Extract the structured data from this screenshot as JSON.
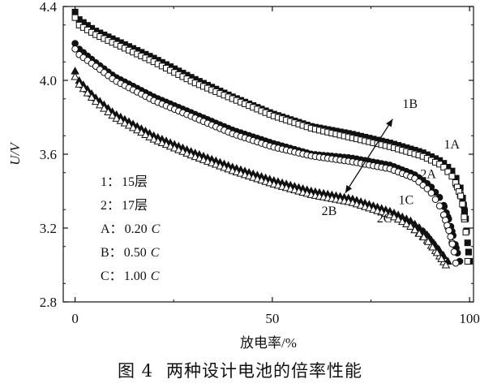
{
  "caption": {
    "figure_no": "图 4",
    "title": "两种设计电池的倍率性能"
  },
  "chart_data": {
    "type": "scatter",
    "xlabel": "放电率/%",
    "ylabel": "U/V",
    "xlim": [
      -3,
      101
    ],
    "ylim": [
      2.8,
      4.4
    ],
    "xticks": [
      0,
      50,
      100
    ],
    "yticks": [
      2.8,
      3.2,
      3.6,
      4.0,
      4.4
    ],
    "grid": false,
    "legend_lines": [
      {
        "key": "1",
        "sep": "：",
        "text": "15层",
        "unit": ""
      },
      {
        "key": "2",
        "sep": "：",
        "text": "17层",
        "unit": ""
      },
      {
        "key": "A",
        "sep": "：",
        "text": "0.20",
        "unit": "C"
      },
      {
        "key": "B",
        "sep": "：",
        "text": "0.50",
        "unit": "C"
      },
      {
        "key": "C",
        "sep": "：",
        "text": "1.00",
        "unit": "C"
      }
    ],
    "series": [
      {
        "name": "1A",
        "marker": "square-filled",
        "end_x": 100.0,
        "points": [
          [
            0,
            4.37
          ],
          [
            1,
            4.33
          ],
          [
            5,
            4.27
          ],
          [
            10,
            4.22
          ],
          [
            20,
            4.12
          ],
          [
            30,
            4.01
          ],
          [
            40,
            3.91
          ],
          [
            50,
            3.82
          ],
          [
            60,
            3.75
          ],
          [
            70,
            3.71
          ],
          [
            80,
            3.66
          ],
          [
            88,
            3.61
          ],
          [
            93,
            3.56
          ],
          [
            96,
            3.5
          ],
          [
            98,
            3.4
          ],
          [
            99,
            3.25
          ],
          [
            99.5,
            3.12
          ],
          [
            100,
            3.02
          ]
        ]
      },
      {
        "name": "1B",
        "marker": "square-open",
        "end_x": 99.5,
        "points": [
          [
            0,
            4.34
          ],
          [
            1,
            4.3
          ],
          [
            5,
            4.25
          ],
          [
            10,
            4.2
          ],
          [
            20,
            4.1
          ],
          [
            30,
            3.99
          ],
          [
            40,
            3.9
          ],
          [
            50,
            3.81
          ],
          [
            60,
            3.74
          ],
          [
            70,
            3.69
          ],
          [
            80,
            3.64
          ],
          [
            88,
            3.59
          ],
          [
            93,
            3.54
          ],
          [
            96,
            3.47
          ],
          [
            98,
            3.36
          ],
          [
            99,
            3.2
          ],
          [
            99.5,
            3.02
          ]
        ]
      },
      {
        "name": "2A",
        "marker": "circle-filled",
        "end_x": 97.5,
        "points": [
          [
            0,
            4.2
          ],
          [
            1,
            4.17
          ],
          [
            5,
            4.1
          ],
          [
            10,
            4.02
          ],
          [
            20,
            3.91
          ],
          [
            30,
            3.82
          ],
          [
            40,
            3.73
          ],
          [
            50,
            3.66
          ],
          [
            60,
            3.6
          ],
          [
            70,
            3.58
          ],
          [
            80,
            3.54
          ],
          [
            86,
            3.49
          ],
          [
            90,
            3.43
          ],
          [
            93,
            3.35
          ],
          [
            95,
            3.23
          ],
          [
            96.5,
            3.1
          ],
          [
            97.5,
            3.02
          ]
        ]
      },
      {
        "name": "2B",
        "marker": "circle-open",
        "end_x": 96.5,
        "points": [
          [
            0,
            4.17
          ],
          [
            1,
            4.14
          ],
          [
            5,
            4.08
          ],
          [
            10,
            4.0
          ],
          [
            20,
            3.89
          ],
          [
            30,
            3.8
          ],
          [
            40,
            3.71
          ],
          [
            50,
            3.64
          ],
          [
            60,
            3.59
          ],
          [
            70,
            3.56
          ],
          [
            80,
            3.52
          ],
          [
            86,
            3.47
          ],
          [
            90,
            3.4
          ],
          [
            93,
            3.3
          ],
          [
            95,
            3.17
          ],
          [
            96,
            3.08
          ],
          [
            96.5,
            3.01
          ]
        ]
      },
      {
        "name": "1C",
        "marker": "triangle-filled",
        "end_x": 94.5,
        "points": [
          [
            0,
            4.05
          ],
          [
            1,
            4.0
          ],
          [
            5,
            3.91
          ],
          [
            10,
            3.82
          ],
          [
            20,
            3.7
          ],
          [
            30,
            3.61
          ],
          [
            40,
            3.53
          ],
          [
            50,
            3.46
          ],
          [
            60,
            3.4
          ],
          [
            70,
            3.36
          ],
          [
            80,
            3.29
          ],
          [
            85,
            3.24
          ],
          [
            89,
            3.17
          ],
          [
            92,
            3.09
          ],
          [
            94.5,
            3.02
          ]
        ]
      },
      {
        "name": "1C-open",
        "marker": "triangle-open",
        "end_x": 94.0,
        "points": [
          [
            0,
            4.02
          ],
          [
            1,
            3.98
          ],
          [
            5,
            3.89
          ],
          [
            10,
            3.8
          ],
          [
            20,
            3.68
          ],
          [
            30,
            3.59
          ],
          [
            40,
            3.51
          ],
          [
            50,
            3.44
          ],
          [
            60,
            3.38
          ],
          [
            70,
            3.34
          ],
          [
            80,
            3.27
          ],
          [
            85,
            3.21
          ],
          [
            89,
            3.14
          ],
          [
            92,
            3.06
          ],
          [
            94,
            3.0
          ]
        ]
      }
    ],
    "annotations": [
      {
        "text": "1A",
        "x": 93.5,
        "y": 3.63
      },
      {
        "text": "2A",
        "x": 87.5,
        "y": 3.47
      },
      {
        "text": "1B",
        "x": 83.0,
        "y": 3.85
      },
      {
        "text": "2B",
        "x": 62.5,
        "y": 3.27
      },
      {
        "text": "1C",
        "x": 82.0,
        "y": 3.33
      },
      {
        "text": "2C",
        "x": 76.5,
        "y": 3.23
      }
    ],
    "arrow": {
      "from": [
        68.5,
        3.39
      ],
      "to": [
        80.5,
        3.79
      ]
    }
  }
}
